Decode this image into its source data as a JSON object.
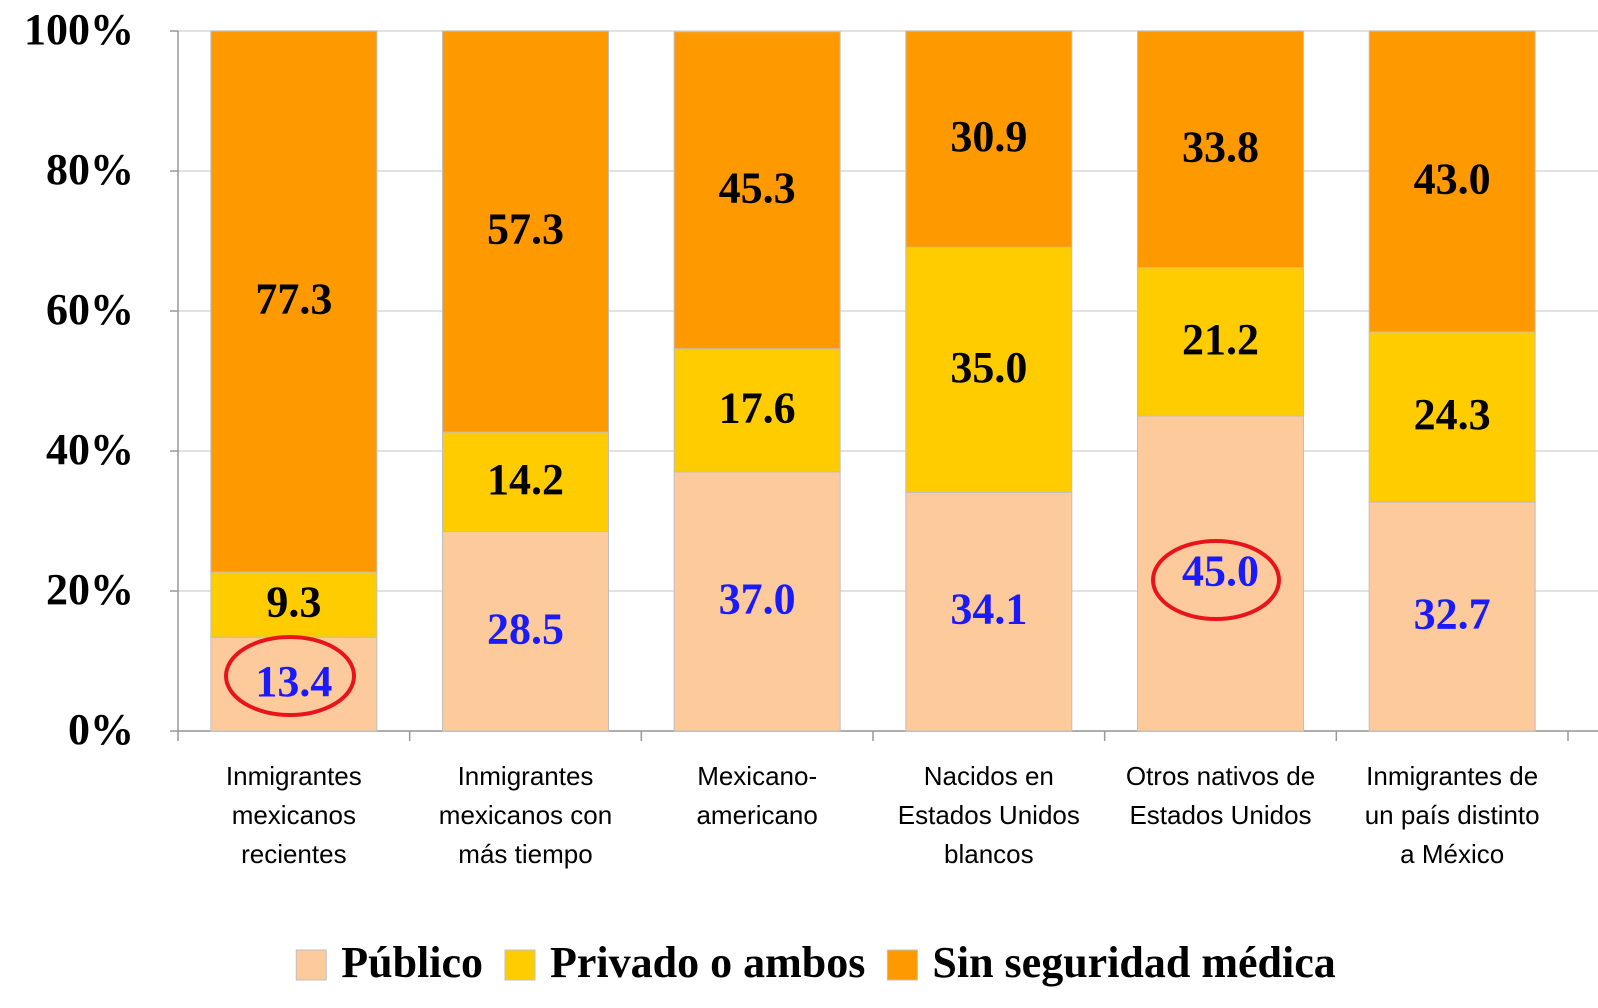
{
  "chart_data": {
    "type": "stacked_bar",
    "categories": [
      [
        "Inmigrantes",
        "mexicanos",
        "recientes"
      ],
      [
        "Inmigrantes",
        "mexicanos con",
        "más tiempo"
      ],
      [
        "Mexicano-",
        "americano"
      ],
      [
        "Nacidos en",
        "Estados Unidos",
        "blancos"
      ],
      [
        "Otros nativos de",
        "Estados Unidos"
      ],
      [
        "Inmigrantes de",
        "un país distinto",
        "a México"
      ]
    ],
    "series": [
      {
        "name": "Público",
        "color": "#fdca9b",
        "label_color": "#1a1aff",
        "values": [
          13.4,
          28.5,
          37.0,
          34.1,
          45.0,
          32.7
        ],
        "value_labels": [
          "13.4",
          "28.5",
          "37.0",
          "34.1",
          "45.0",
          "32.7"
        ]
      },
      {
        "name": "Privado o ambos",
        "color": "#ffcc00",
        "label_color": "#000000",
        "values": [
          9.3,
          14.2,
          17.6,
          35.0,
          21.2,
          24.3
        ],
        "value_labels": [
          "9.3",
          "14.2",
          "17.6",
          "35.0",
          "21.2",
          "24.3"
        ]
      },
      {
        "name": "Sin seguridad médica",
        "color": "#ff9900",
        "label_color": "#000000",
        "values": [
          77.3,
          57.3,
          45.3,
          30.9,
          33.8,
          43.0
        ],
        "value_labels": [
          "77.3",
          "57.3",
          "45.3",
          "30.9",
          "33.8",
          "43.0"
        ]
      }
    ],
    "ylim": [
      0,
      100
    ],
    "yticks": [
      {
        "value": 0,
        "label": "0%"
      },
      {
        "value": 20,
        "label": "20%"
      },
      {
        "value": 40,
        "label": "40%"
      },
      {
        "value": 60,
        "label": "60%"
      },
      {
        "value": 80,
        "label": "80%"
      },
      {
        "value": 100,
        "label": "100%"
      }
    ],
    "grid": true,
    "legend": "bottom"
  }
}
